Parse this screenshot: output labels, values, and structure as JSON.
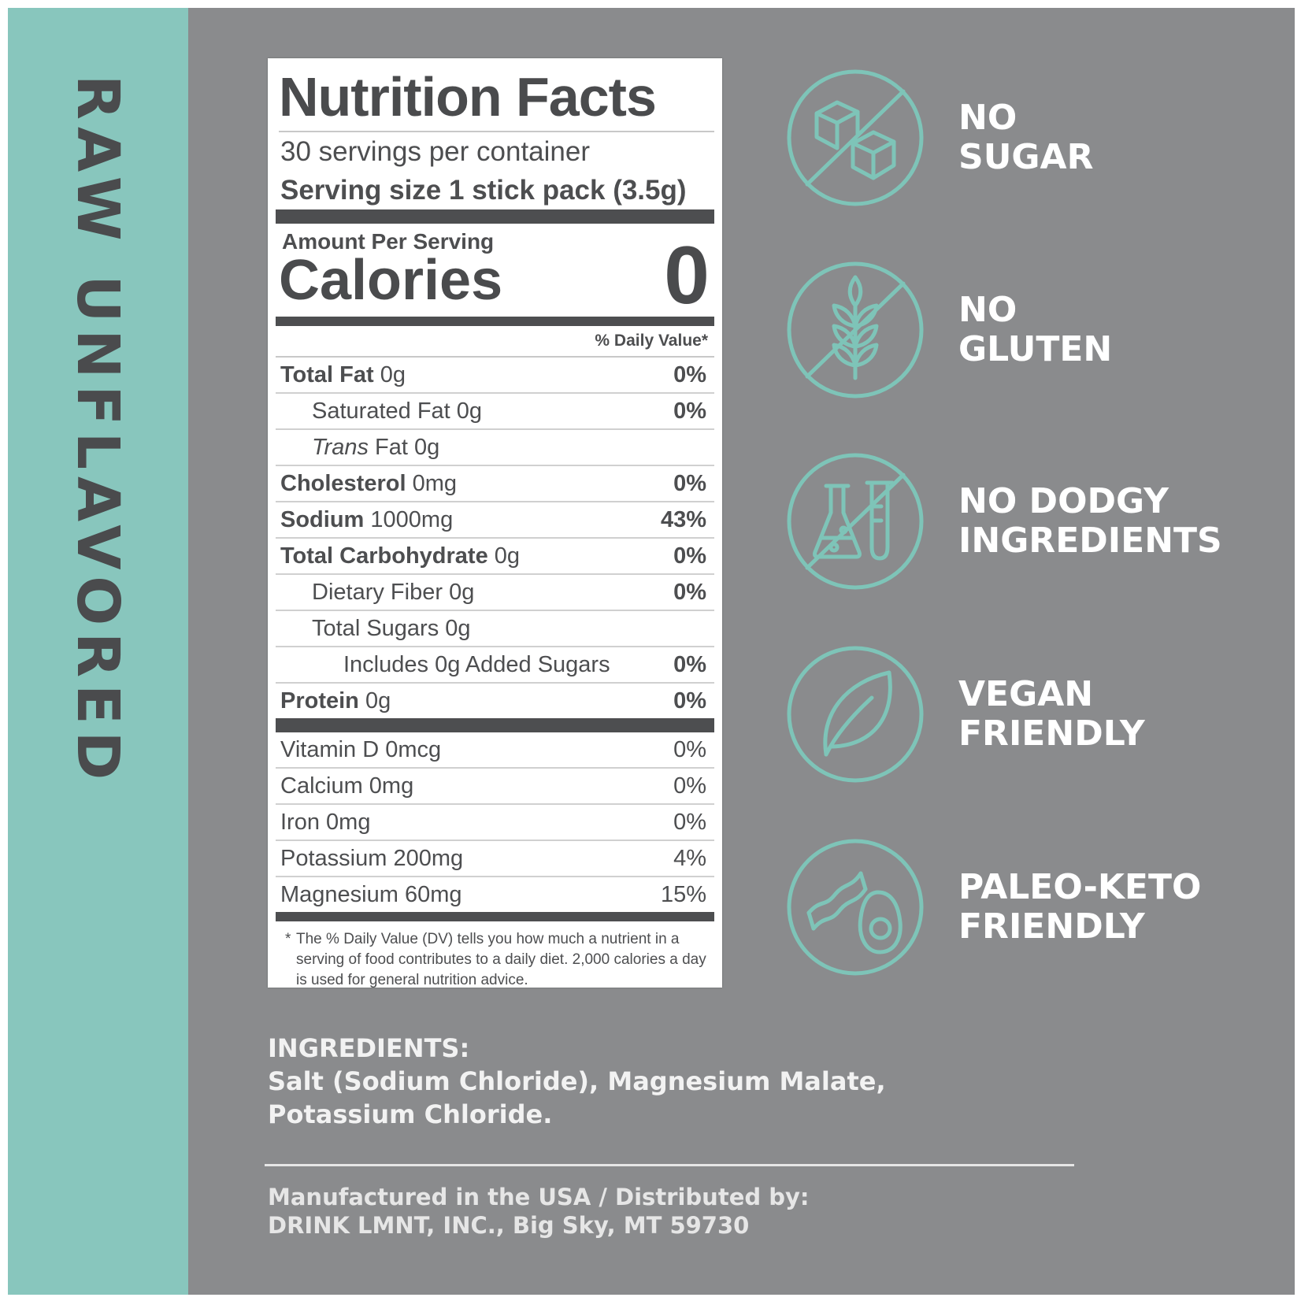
{
  "side_title": "RAW UNFLAVORED",
  "nutrition": {
    "title": "Nutrition Facts",
    "servings_per_container": "30 servings per container",
    "serving_size_label": "Serving size",
    "serving_size_value": "1 stick pack (3.5g)",
    "amount_per_serving": "Amount Per Serving",
    "calories_label": "Calories",
    "calories_value": "0",
    "daily_value_header": "% Daily Value*",
    "nutrients": [
      {
        "label": "Total Fat",
        "amount": "0g",
        "dv": "0%"
      },
      {
        "label": "Saturated Fat",
        "amount": "0g",
        "dv": "0%"
      },
      {
        "label_italic": "Trans",
        "label": "Fat",
        "amount": "0g",
        "dv": ""
      },
      {
        "label": "Cholesterol",
        "amount": "0mg",
        "dv": "0%"
      },
      {
        "label": "Sodium",
        "amount": "1000mg",
        "dv": "43%"
      },
      {
        "label": "Total Carbohydrate",
        "amount": "0g",
        "dv": "0%"
      },
      {
        "label": "Dietary Fiber",
        "amount": "0g",
        "dv": "0%"
      },
      {
        "label": "Total Sugars",
        "amount": "0g",
        "dv": ""
      },
      {
        "label": "Includes 0g Added Sugars",
        "amount": "",
        "dv": "0%"
      },
      {
        "label": "Protein",
        "amount": "0g",
        "dv": "0%"
      }
    ],
    "vitamins": [
      {
        "label": "Vitamin D 0mcg",
        "dv": "0%"
      },
      {
        "label": "Calcium 0mg",
        "dv": "0%"
      },
      {
        "label": "Iron 0mg",
        "dv": "0%"
      },
      {
        "label": "Potassium 200mg",
        "dv": "4%"
      },
      {
        "label": "Magnesium 60mg",
        "dv": "15%"
      }
    ],
    "footnote_star": "*",
    "footnote": "The % Daily Value (DV) tells you how much a nutrient in a serving of food contributes to a daily diet. 2,000 calories a day is used for general nutrition advice."
  },
  "claims": [
    {
      "line1": "NO",
      "line2": "SUGAR",
      "icon": "sugar-cubes-icon"
    },
    {
      "line1": "NO",
      "line2": "GLUTEN",
      "icon": "wheat-icon"
    },
    {
      "line1": "NO DODGY",
      "line2": "INGREDIENTS",
      "icon": "lab-flask-icon"
    },
    {
      "line1": "VEGAN",
      "line2": "FRIENDLY",
      "icon": "leaf-icon"
    },
    {
      "line1": "PALEO-KETO",
      "line2": "FRIENDLY",
      "icon": "bacon-avocado-icon"
    }
  ],
  "ingredients": {
    "heading": "INGREDIENTS:",
    "line1": "Salt (Sodium Chloride), Magnesium Malate,",
    "line2": "Potassium Chloride."
  },
  "footer": {
    "line1": "Manufactured in the USA / Distributed by:",
    "line2": "DRINK LMNT, INC., Big Sky, MT 59730"
  },
  "colors": {
    "teal_panel": "#88c6bd",
    "gray_background": "#8a8b8d",
    "icon_teal": "#7ec4b8",
    "label_text": "#4d4e50"
  }
}
